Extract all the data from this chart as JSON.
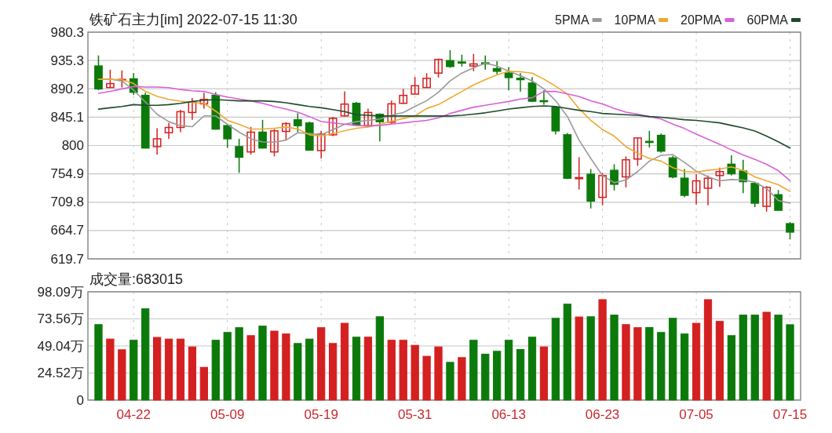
{
  "chart_data": [
    {
      "type": "candlestick",
      "title": "铁矿石主力[im] 2022-07-15 11:30",
      "categories": [
        null,
        null,
        null,
        null,
        null,
        null,
        null,
        null,
        null,
        null,
        null,
        null,
        null,
        null,
        null,
        null,
        null,
        null,
        null,
        null,
        null,
        null,
        null,
        null,
        null,
        null,
        null,
        null,
        null,
        null,
        null,
        null,
        null,
        null,
        null,
        null,
        null,
        null,
        null,
        null,
        null,
        null,
        null,
        null,
        null,
        null,
        null,
        null,
        null,
        null,
        null,
        null,
        null,
        null,
        null,
        null,
        null,
        null,
        null,
        null
      ],
      "ohlc": [
        [
          926.5,
          943.2,
          888,
          890.1
        ],
        [
          892.2,
          920.6,
          891.4,
          898.5
        ],
        [
          904.3,
          919.4,
          892.2,
          905.2
        ],
        [
          906,
          915.2,
          880.5,
          884.7
        ],
        [
          879.7,
          883.9,
          795.2,
          796.1
        ],
        [
          798.2,
          827.4,
          785.6,
          810.7
        ],
        [
          820.3,
          835.8,
          810.7,
          828.7
        ],
        [
          828.7,
          856.7,
          821.2,
          853.8
        ],
        [
          852.5,
          875.5,
          840.8,
          869.2
        ],
        [
          866.3,
          883.9,
          858.8,
          873.4
        ],
        [
          879.7,
          884.7,
          825.3,
          826.2
        ],
        [
          831.6,
          833.7,
          796.1,
          810.7
        ],
        [
          798.2,
          810.7,
          756.4,
          781.4
        ],
        [
          789.8,
          829.5,
          785.6,
          821.2
        ],
        [
          821.2,
          840.8,
          795.2,
          796.1
        ],
        [
          789.8,
          826.2,
          782.7,
          823.3
        ],
        [
          822.4,
          837,
          809.5,
          834.9
        ],
        [
          840.8,
          851.3,
          821.2,
          831.6
        ],
        [
          835.8,
          837.9,
          791.9,
          792.7
        ],
        [
          791.9,
          823.3,
          779.4,
          818.2
        ],
        [
          817,
          845.4,
          814.9,
          843.3
        ],
        [
          847.1,
          886,
          846.2,
          865.9
        ],
        [
          867.1,
          869.2,
          831.6,
          832.4
        ],
        [
          831.6,
          858.8,
          829.5,
          852.5
        ],
        [
          849.6,
          851.3,
          806.5,
          837.9
        ],
        [
          837,
          871.3,
          834.5,
          866.3
        ],
        [
          867.1,
          890.1,
          866.3,
          879.7
        ],
        [
          881.8,
          908.9,
          881.8,
          895.1
        ],
        [
          892.2,
          915.2,
          892.2,
          906.9
        ],
        [
          915.2,
          938.2,
          908.1,
          937
        ],
        [
          934.9,
          951.6,
          923.6,
          925.7
        ],
        [
          932.8,
          944.5,
          925.7,
          931.1
        ],
        [
          926.5,
          945.7,
          918.1,
          929.8
        ],
        [
          931.5,
          943.2,
          920.6,
          929.8
        ],
        [
          922.3,
          934,
          913.1,
          918.1
        ],
        [
          915.2,
          924.8,
          888,
          908.1
        ],
        [
          906.9,
          915.2,
          885.9,
          904.8
        ],
        [
          899.3,
          908.9,
          869.2,
          870.5
        ],
        [
          871.3,
          888,
          865,
          870.1
        ],
        [
          860.9,
          862.1,
          817.8,
          823.3
        ],
        [
          817,
          819.9,
          746.8,
          748
        ],
        [
          747.2,
          781.4,
          730,
          748.9
        ],
        [
          754.3,
          762.6,
          699.9,
          711.6
        ],
        [
          717.5,
          756.4,
          704.9,
          752.2
        ],
        [
          760.5,
          770.2,
          728.4,
          738.4
        ],
        [
          750.1,
          782.7,
          733.4,
          777.3
        ],
        [
          778.5,
          812.8,
          767.7,
          812
        ],
        [
          806.5,
          823.3,
          796.9,
          804.9
        ],
        [
          816.1,
          819.1,
          788.6,
          791.1
        ],
        [
          780.2,
          783.5,
          748,
          750.1
        ],
        [
          748,
          762.6,
          717.5,
          720.8
        ],
        [
          725,
          754.3,
          706.2,
          743.8
        ],
        [
          732.1,
          752.2,
          704.9,
          748
        ],
        [
          752.2,
          764.7,
          734.2,
          758.5
        ],
        [
          770.2,
          784.4,
          752.2,
          755.1
        ],
        [
          759.3,
          777.3,
          724.2,
          742.6
        ],
        [
          739.6,
          740.9,
          702,
          708.3
        ],
        [
          703.3,
          735.5,
          694.9,
          733.4
        ],
        [
          721.7,
          729.2,
          696.6,
          697
        ],
        [
          675.7,
          678.2,
          650.6,
          662.3
        ]
      ],
      "series": [
        {
          "name": "5PMA",
          "type": "line",
          "color": "#9a9a9a",
          "values": [
            905.6,
            905.6,
            902.7,
            888,
            869.2,
            849.6,
            837.9,
            831.6,
            829.9,
            847.1,
            847.1,
            833.7,
            821.2,
            810.7,
            805.7,
            805.3,
            808.6,
            820.3,
            819.1,
            817,
            825.3,
            833.7,
            837.9,
            840,
            842.1,
            848.3,
            852.5,
            862.1,
            871.3,
            884.7,
            902.7,
            915.2,
            923.6,
            931.1,
            926.5,
            918.1,
            911,
            902.7,
            890.1,
            871.3,
            846.2,
            808.6,
            779.4,
            752.2,
            740.9,
            745.1,
            758.5,
            775.2,
            784.4,
            785.6,
            773.1,
            759.3,
            750.1,
            743.8,
            745.9,
            745.1,
            741.7,
            731.3,
            712.5,
            708.3
          ]
        },
        {
          "name": "10PMA",
          "type": "line",
          "color": "#f0a830",
          "values": [
            905.6,
            905.2,
            904.8,
            898.5,
            886,
            878.4,
            873.4,
            870.5,
            868.4,
            867.1,
            854.6,
            840,
            833.7,
            826.2,
            826.2,
            827.4,
            829.5,
            826.2,
            817,
            815,
            819,
            823.3,
            827.4,
            829.5,
            833.7,
            838.7,
            842.9,
            847.1,
            858.8,
            865.1,
            875.5,
            886,
            896.4,
            904.8,
            912.3,
            918.1,
            917.3,
            915.2,
            905.6,
            894.3,
            881.8,
            858.8,
            840,
            825.3,
            814.9,
            798.2,
            787.7,
            779.4,
            775.2,
            764.7,
            758.5,
            757.6,
            760.5,
            762.6,
            766,
            760.5,
            750.1,
            743.8,
            737.6,
            727.1
          ]
        },
        {
          "name": "20PMA",
          "type": "line",
          "color": "#d860d8",
          "values": [
            883,
            886,
            890,
            894,
            893,
            893,
            892,
            889,
            887,
            886,
            881,
            877,
            874,
            871,
            867,
            862,
            858,
            853,
            846,
            838,
            836,
            834,
            832,
            831,
            832,
            834,
            836,
            838,
            840,
            844,
            851,
            856,
            861,
            864,
            867,
            870,
            874,
            876,
            886,
            886,
            882,
            878,
            871,
            866,
            859,
            853,
            850,
            846,
            842,
            834,
            827,
            818,
            810,
            802,
            793,
            785,
            778,
            770,
            760,
            744
          ]
        },
        {
          "name": "60PMA",
          "type": "line",
          "color": "#1e4a2a",
          "values": [
            857.9,
            860,
            862,
            865,
            864,
            864,
            865,
            867,
            870,
            872,
            873,
            872,
            871,
            871,
            871,
            870,
            868,
            865,
            862,
            860,
            857,
            854,
            849,
            848,
            847,
            847,
            847,
            847,
            847,
            847,
            847,
            848,
            850,
            852,
            855,
            858,
            860,
            862,
            863,
            862,
            859,
            856,
            854,
            851,
            850,
            849,
            848,
            846,
            845,
            843,
            841,
            840,
            838,
            836,
            832,
            828,
            823,
            815,
            806,
            796
          ]
        }
      ],
      "ylim": [
        619.7,
        980.3
      ],
      "yticks": [
        619.7,
        664.7,
        709.8,
        754.9,
        800.0,
        845.1,
        890.2,
        935.3,
        980.3
      ],
      "grid": true,
      "legend": "top right",
      "tick_labels": "y"
    },
    {
      "type": "bar",
      "title": "成交量:683015",
      "categories": [
        null,
        null,
        null,
        "04-22",
        null,
        null,
        null,
        null,
        null,
        null,
        null,
        "05-09",
        null,
        null,
        null,
        null,
        null,
        null,
        null,
        "05-19",
        null,
        null,
        null,
        null,
        null,
        null,
        null,
        "05-31",
        null,
        null,
        null,
        null,
        null,
        null,
        null,
        "06-13",
        null,
        null,
        null,
        null,
        null,
        null,
        null,
        "06-23",
        null,
        null,
        null,
        null,
        null,
        null,
        null,
        "07-05",
        null,
        null,
        null,
        null,
        null,
        null,
        null,
        "07-15"
      ],
      "values": [
        68.4,
        55.3,
        45.6,
        54.2,
        82.7,
        56.8,
        55.3,
        55.3,
        48.2,
        29.7,
        54.2,
        61.3,
        65.6,
        58.4,
        67.0,
        62.5,
        59.9,
        51.3,
        55.3,
        65.6,
        51.3,
        69.6,
        57.0,
        57.0,
        75.5,
        54.2,
        54.2,
        49.6,
        39.7,
        48.2,
        34.2,
        38.5,
        54.2,
        41.6,
        44.2,
        54.2,
        45.8,
        57.0,
        48.2,
        74.1,
        86.9,
        75.3,
        75.5,
        91.0,
        77.0,
        68.4,
        65.6,
        65.8,
        61.3,
        74.1,
        59.9,
        69.6,
        91.0,
        71.3,
        58.4,
        77.0,
        77.0,
        79.6,
        77.0,
        68.3
      ],
      "colors": [
        "#0b7a0b",
        "#d42020",
        "#d42020",
        "#0b7a0b",
        "#0b7a0b",
        "#d42020",
        "#d42020",
        "#d42020",
        "#d42020",
        "#d42020",
        "#0b7a0b",
        "#0b7a0b",
        "#0b7a0b",
        "#d42020",
        "#0b7a0b",
        "#d42020",
        "#d42020",
        "#0b7a0b",
        "#0b7a0b",
        "#d42020",
        "#d42020",
        "#d42020",
        "#0b7a0b",
        "#d42020",
        "#0b7a0b",
        "#d42020",
        "#d42020",
        "#d42020",
        "#d42020",
        "#d42020",
        "#0b7a0b",
        "#d42020",
        "#0b7a0b",
        "#0b7a0b",
        "#0b7a0b",
        "#0b7a0b",
        "#0b7a0b",
        "#0b7a0b",
        "#d42020",
        "#0b7a0b",
        "#0b7a0b",
        "#d42020",
        "#0b7a0b",
        "#d42020",
        "#0b7a0b",
        "#d42020",
        "#d42020",
        "#0b7a0b",
        "#0b7a0b",
        "#0b7a0b",
        "#0b7a0b",
        "#d42020",
        "#d42020",
        "#d42020",
        "#0b7a0b",
        "#0b7a0b",
        "#0b7a0b",
        "#d42020",
        "#0b7a0b",
        "#0b7a0b"
      ],
      "ylim": [
        0,
        98.09
      ],
      "yticks": [
        0,
        {
          "value": 24.52,
          "label": "24.52万"
        },
        {
          "value": 49.04,
          "label": "49.04万"
        },
        {
          "value": 73.56,
          "label": "73.56万"
        },
        {
          "value": 98.09,
          "label": "98.09万"
        }
      ],
      "grid": true
    }
  ]
}
